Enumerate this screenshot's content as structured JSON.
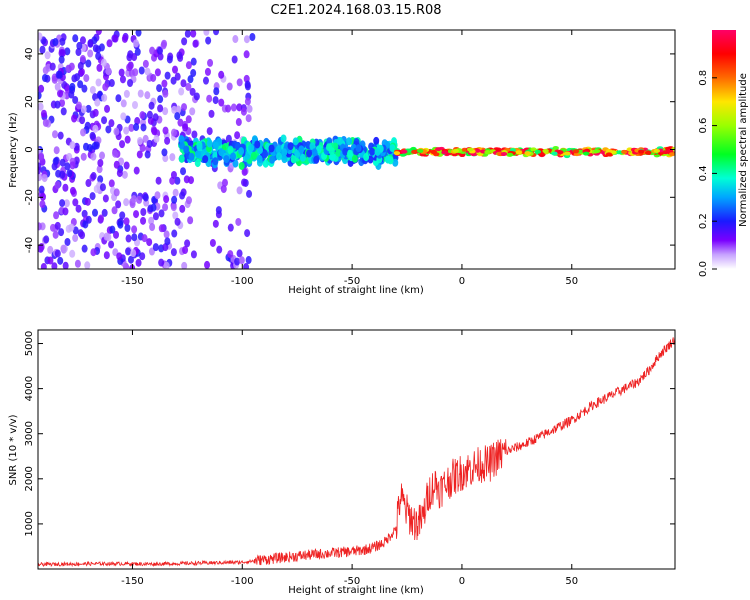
{
  "title": "C2E1.2024.168.03.15.R08",
  "colors": {
    "snr_line": "#ee2222",
    "axis": "#000000",
    "background": "#ffffff"
  },
  "chart_data": [
    {
      "type": "heatmap",
      "xlabel": "Height of straight line (km)",
      "ylabel": "Frequency (Hz)",
      "xlim": [
        -193,
        97
      ],
      "ylim": [
        -50,
        50
      ],
      "xticks": [
        "-150",
        "-100",
        "-50",
        "0",
        "50"
      ],
      "yticks": [
        "-40",
        "-20",
        "0",
        "20",
        "40"
      ],
      "xtick_values": [
        -150,
        -100,
        -50,
        0,
        50
      ],
      "ytick_values": [
        -40,
        -20,
        0,
        20,
        40
      ],
      "colorbar": {
        "label": "Normalized spectral amplitude",
        "range": [
          0,
          1
        ],
        "ticks": [
          "0.0",
          "0.2",
          "0.4",
          "0.6",
          "0.8"
        ],
        "tick_values": [
          0,
          0.2,
          0.4,
          0.6,
          0.8
        ],
        "colormap": "rainbow (white-purple-blue-cyan-green-yellow-red-magenta)"
      },
      "features": [
        {
          "x_range": [
            -193,
            -95
          ],
          "freq_center": 0,
          "freq_spread": 50,
          "amplitude": [
            0.05,
            0.2
          ],
          "note": "scattered noise across full band"
        },
        {
          "x_range": [
            -128,
            -30
          ],
          "freq_center": -1,
          "freq_spread": 7,
          "amplitude": [
            0.2,
            0.45
          ],
          "note": "broad signal band"
        },
        {
          "x_range": [
            -30,
            97
          ],
          "freq_center": -1,
          "freq_spread": 2,
          "amplitude": [
            0.4,
            1.0
          ],
          "note": "narrow strong signal line"
        }
      ]
    },
    {
      "type": "line",
      "xlabel": "Height of straight line (km)",
      "ylabel": "SNR (10 * v/v)",
      "xlim": [
        -193,
        97
      ],
      "ylim": [
        0,
        5300
      ],
      "xticks": [
        "-150",
        "-100",
        "-50",
        "0",
        "50"
      ],
      "yticks": [
        "1000",
        "2000",
        "3000",
        "4000",
        "5000"
      ],
      "xtick_values": [
        -150,
        -100,
        -50,
        0,
        50
      ],
      "ytick_values": [
        1000,
        2000,
        3000,
        4000,
        5000
      ],
      "series": [
        {
          "x": [
            -193,
            -180,
            -160,
            -140,
            -120,
            -110,
            -100,
            -90,
            -80,
            -70,
            -60,
            -50,
            -45,
            -40,
            -35,
            -30,
            -28,
            -25,
            -22,
            -20,
            -18,
            -15,
            -12,
            -10,
            -5,
            0,
            5,
            10,
            12,
            15,
            20,
            30,
            40,
            50,
            60,
            70,
            80,
            85,
            90,
            97
          ],
          "y": [
            100,
            110,
            120,
            110,
            130,
            140,
            150,
            210,
            260,
            310,
            350,
            390,
            420,
            480,
            600,
            900,
            1600,
            1250,
            1050,
            1000,
            1100,
            1700,
            1900,
            1750,
            2000,
            2150,
            2250,
            2350,
            2300,
            2450,
            2600,
            2800,
            3050,
            3300,
            3650,
            3900,
            4150,
            4400,
            4750,
            5100
          ]
        }
      ]
    }
  ]
}
